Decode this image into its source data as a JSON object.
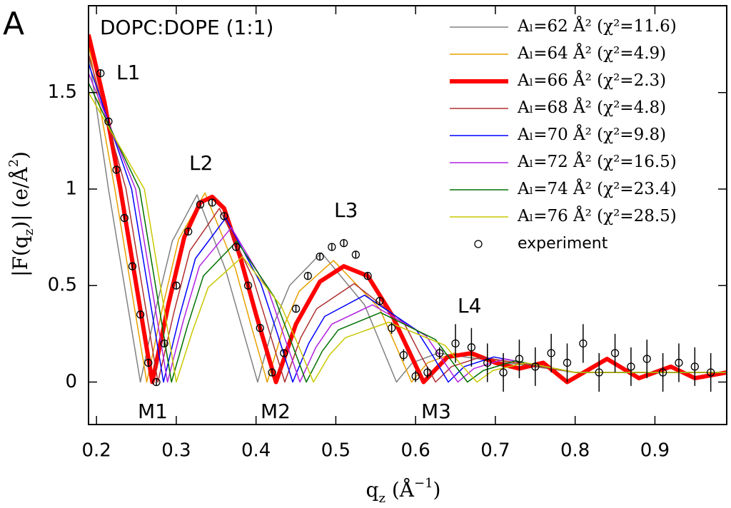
{
  "chart_data": {
    "type": "line",
    "panel": "A",
    "title": "DOPC:DOPE (1:1)",
    "x_label": [
      "q",
      "z",
      " (Å",
      "−1",
      ")"
    ],
    "y_label": [
      "|F(q",
      "z",
      ")| (e/Å",
      "2",
      ")"
    ],
    "annotations": [
      "L1",
      "L2",
      "L3",
      "L4",
      "M1",
      "M2",
      "M3"
    ],
    "xlim": [
      0.19,
      0.99
    ],
    "ylim": [
      -0.22,
      1.95
    ],
    "xticks": [
      0.2,
      0.3,
      0.4,
      0.5,
      0.6,
      0.7,
      0.8,
      0.9
    ],
    "yticks": [
      0,
      0.5,
      1,
      1.5
    ],
    "legend": "upper right",
    "series": [
      {
        "name": "Aₗ=62 Å² (χ²=11.6)",
        "color": "#808080",
        "linewidth": 1.5,
        "x": [
          0.19,
          0.215,
          0.235,
          0.255,
          0.275,
          0.295,
          0.326,
          0.362,
          0.382,
          0.402,
          0.422,
          0.442,
          0.482,
          0.536,
          0.556,
          0.576,
          0.596,
          0.628,
          0.8,
          0.99
        ],
        "values": [
          1.7,
          1.0,
          0.5,
          0,
          0.39,
          0.73,
          0.97,
          0.58,
          0.29,
          0,
          0.3,
          0.5,
          0.67,
          0.4,
          0.2,
          0,
          0.1,
          0.15,
          0.05,
          0.05
        ]
      },
      {
        "name": "Aₗ=64 Å² (χ²=4.9)",
        "color": "#e8a000",
        "linewidth": 1.5,
        "x": [
          0.19,
          0.223,
          0.243,
          0.263,
          0.283,
          0.303,
          0.336,
          0.374,
          0.394,
          0.414,
          0.434,
          0.454,
          0.497,
          0.555,
          0.575,
          0.595,
          0.615,
          0.648,
          0.8,
          0.99
        ],
        "values": [
          1.75,
          1.0,
          0.5,
          0,
          0.39,
          0.74,
          0.98,
          0.59,
          0.29,
          0,
          0.28,
          0.47,
          0.63,
          0.38,
          0.19,
          0,
          0.1,
          0.15,
          0.05,
          0.05
        ]
      },
      {
        "name": "Aₗ=66 Å² (χ²=2.3)",
        "color": "#ff0000",
        "linewidth": 6,
        "x": [
          0.19,
          0.21,
          0.23,
          0.25,
          0.27,
          0.29,
          0.31,
          0.33,
          0.345,
          0.36,
          0.38,
          0.4,
          0.425,
          0.45,
          0.48,
          0.51,
          0.54,
          0.57,
          0.61,
          0.64,
          0.67,
          0.7,
          0.73,
          0.76,
          0.79,
          0.84,
          0.88,
          0.92,
          0.95,
          0.99
        ],
        "values": [
          1.8,
          1.45,
          1.0,
          0.5,
          0,
          0.4,
          0.75,
          0.93,
          0.96,
          0.9,
          0.65,
          0.35,
          0,
          0.3,
          0.52,
          0.6,
          0.55,
          0.35,
          0,
          0.13,
          0.15,
          0.1,
          0.07,
          0.1,
          0,
          0.12,
          0.02,
          0.08,
          0.02,
          0.05
        ]
      },
      {
        "name": "Aₗ=68 Å² (χ²=4.8)",
        "color": "#b03030",
        "linewidth": 1.5,
        "x": [
          0.19,
          0.237,
          0.257,
          0.277,
          0.297,
          0.317,
          0.354,
          0.396,
          0.416,
          0.436,
          0.456,
          0.476,
          0.523,
          0.585,
          0.605,
          0.625,
          0.645,
          0.682,
          0.8,
          0.99
        ],
        "values": [
          1.7,
          1.0,
          0.5,
          0,
          0.36,
          0.68,
          0.9,
          0.54,
          0.27,
          0,
          0.23,
          0.38,
          0.51,
          0.31,
          0.15,
          0,
          0.08,
          0.13,
          0.05,
          0.05
        ]
      },
      {
        "name": "Aₗ=70 Å² (χ²=9.8)",
        "color": "#0000ff",
        "linewidth": 1.5,
        "x": [
          0.19,
          0.244,
          0.264,
          0.284,
          0.304,
          0.324,
          0.362,
          0.406,
          0.426,
          0.446,
          0.466,
          0.486,
          0.536,
          0.601,
          0.621,
          0.641,
          0.661,
          0.698,
          0.8,
          0.99
        ],
        "values": [
          1.65,
          1.0,
          0.5,
          0,
          0.34,
          0.64,
          0.85,
          0.51,
          0.26,
          0,
          0.2,
          0.34,
          0.45,
          0.27,
          0.14,
          0,
          0.08,
          0.13,
          0.05,
          0.05
        ]
      },
      {
        "name": "Aₗ=72 Å² (χ²=16.5)",
        "color": "#b020e0",
        "linewidth": 1.5,
        "x": [
          0.19,
          0.249,
          0.269,
          0.289,
          0.309,
          0.329,
          0.369,
          0.415,
          0.435,
          0.455,
          0.475,
          0.495,
          0.546,
          0.613,
          0.633,
          0.653,
          0.673,
          0.712,
          0.8,
          0.99
        ],
        "values": [
          1.6,
          1.0,
          0.5,
          0,
          0.32,
          0.6,
          0.8,
          0.48,
          0.24,
          0,
          0.18,
          0.3,
          0.4,
          0.24,
          0.12,
          0,
          0.07,
          0.12,
          0.05,
          0.05
        ]
      },
      {
        "name": "Aₗ=74 Å² (χ²=23.4)",
        "color": "#007000",
        "linewidth": 1.5,
        "x": [
          0.19,
          0.254,
          0.274,
          0.294,
          0.314,
          0.334,
          0.376,
          0.423,
          0.443,
          0.463,
          0.483,
          0.503,
          0.556,
          0.625,
          0.645,
          0.665,
          0.685,
          0.725,
          0.8,
          0.99
        ],
        "values": [
          1.55,
          1.0,
          0.5,
          0,
          0.29,
          0.55,
          0.73,
          0.44,
          0.22,
          0,
          0.16,
          0.27,
          0.36,
          0.22,
          0.11,
          0,
          0.06,
          0.11,
          0.05,
          0.05
        ]
      },
      {
        "name": "Aₗ=76 Å² (χ²=28.5)",
        "color": "#c8c800",
        "linewidth": 1.5,
        "x": [
          0.19,
          0.26,
          0.28,
          0.3,
          0.32,
          0.34,
          0.383,
          0.432,
          0.452,
          0.472,
          0.492,
          0.512,
          0.566,
          0.637,
          0.657,
          0.677,
          0.697,
          0.738,
          0.8,
          0.99
        ],
        "values": [
          1.5,
          1.0,
          0.5,
          0,
          0.26,
          0.49,
          0.65,
          0.39,
          0.2,
          0,
          0.14,
          0.23,
          0.31,
          0.19,
          0.09,
          0,
          0.06,
          0.1,
          0.05,
          0.05
        ]
      },
      {
        "name": "experiment",
        "color": "#000000",
        "marker": "circle",
        "x": [
          0.205,
          0.215,
          0.225,
          0.235,
          0.245,
          0.255,
          0.265,
          0.275,
          0.285,
          0.3,
          0.315,
          0.33,
          0.345,
          0.36,
          0.375,
          0.39,
          0.405,
          0.42,
          0.435,
          0.45,
          0.465,
          0.48,
          0.495,
          0.51,
          0.525,
          0.54,
          0.555,
          0.57,
          0.585,
          0.6,
          0.615,
          0.63,
          0.65,
          0.67,
          0.69,
          0.71,
          0.73,
          0.75,
          0.77,
          0.79,
          0.81,
          0.83,
          0.85,
          0.87,
          0.89,
          0.91,
          0.93,
          0.95,
          0.97
        ],
        "values": [
          1.6,
          1.35,
          1.1,
          0.85,
          0.6,
          0.35,
          0.1,
          0,
          0.2,
          0.5,
          0.78,
          0.92,
          0.93,
          0.86,
          0.7,
          0.5,
          0.28,
          0.05,
          0.15,
          0.38,
          0.55,
          0.65,
          0.7,
          0.72,
          0.66,
          0.55,
          0.42,
          0.28,
          0.14,
          0.03,
          0.05,
          0.15,
          0.2,
          0.18,
          0.1,
          0.05,
          0.12,
          0.08,
          0.15,
          0.1,
          0.2,
          0.05,
          0.15,
          0.08,
          0.12,
          0.05,
          0.1,
          0.08,
          0.05
        ],
        "errors": [
          0.02,
          0.02,
          0.02,
          0.02,
          0.02,
          0.02,
          0.02,
          0.02,
          0.02,
          0.02,
          0.02,
          0.02,
          0.02,
          0.02,
          0.02,
          0.02,
          0.02,
          0.02,
          0.02,
          0.02,
          0.02,
          0.02,
          0.02,
          0.02,
          0.02,
          0.02,
          0.02,
          0.03,
          0.03,
          0.03,
          0.03,
          0.03,
          0.1,
          0.1,
          0.1,
          0.1,
          0.1,
          0.1,
          0.1,
          0.1,
          0.1,
          0.1,
          0.1,
          0.1,
          0.1,
          0.1,
          0.1,
          0.1,
          0.1
        ]
      }
    ]
  }
}
